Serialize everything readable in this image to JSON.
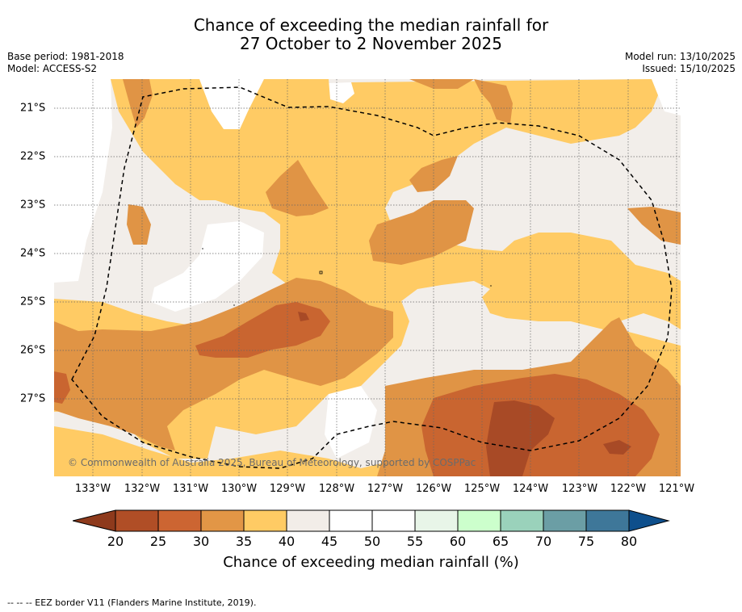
{
  "title_line1": "Chance of exceeding the median rainfall for",
  "title_line2": "27 October to 2 November 2025",
  "base_period": "Base period: 1981-2018",
  "model": "Model: ACCESS-S2",
  "model_run": "Model run: 13/10/2025",
  "issued": "Issued: 15/10/2025",
  "copyright": "© Commonwealth of Australia 2025, Bureau of Meteorology, supported by COSPPac",
  "lon_labels": [
    "133°W",
    "132°W",
    "131°W",
    "130°W",
    "129°W",
    "128°W",
    "127°W",
    "126°W",
    "125°W",
    "124°W",
    "123°W",
    "122°W",
    "121°W"
  ],
  "lat_labels": [
    "21°S",
    "22°S",
    "23°S",
    "24°S",
    "25°S",
    "26°S",
    "27°S"
  ],
  "colorbar": {
    "title": "Chance of exceeding median rainfall (%)",
    "ticks": [
      "20",
      "25",
      "30",
      "35",
      "40",
      "45",
      "50",
      "55",
      "60",
      "65",
      "70",
      "75",
      "80"
    ],
    "colors": [
      "#a3471f",
      "#b04e26",
      "#cc6532",
      "#e29646",
      "#ffcb64",
      "#f2ede8",
      "#ffffff",
      "#ffffff",
      "#e8f5e8",
      "#ccffcc",
      "#9ad2bb",
      "#6b9ea5",
      "#3e7799",
      "#0e4f8c"
    ],
    "categories": {
      "c20": "#a84a26",
      "c25": "#c96530",
      "c30": "#e09445",
      "c35": "#ffcb64",
      "c40": "#f2eeea",
      "c45": "#ffffff"
    }
  },
  "footnote": "--  --  -- EEZ border V11 (Flanders Marine Institute, 2019)."
}
